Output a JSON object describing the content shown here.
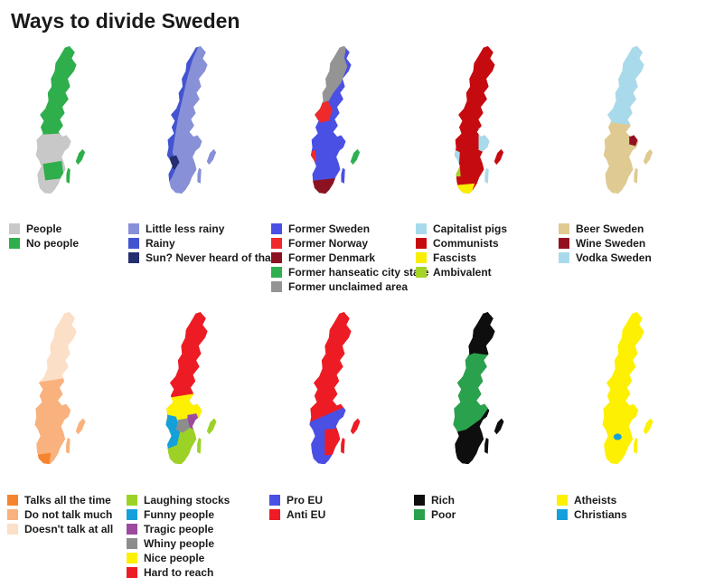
{
  "title": "Ways to divide Sweden",
  "maps": [
    {
      "id": "population",
      "legend": [
        {
          "label": "People",
          "color": "#c8c8c8"
        },
        {
          "label": "No people",
          "color": "#2fae4c"
        }
      ]
    },
    {
      "id": "rain",
      "legend": [
        {
          "label": "Little less rainy",
          "color": "#8890d8"
        },
        {
          "label": "Rainy",
          "color": "#4254d0"
        },
        {
          "label": "Sun? Never heard of that",
          "color": "#242e70"
        }
      ]
    },
    {
      "id": "former-countries",
      "legend": [
        {
          "label": "Former Sweden",
          "color": "#4a50e4"
        },
        {
          "label": "Former Norway",
          "color": "#ee2a2b"
        },
        {
          "label": "Former Denmark",
          "color": "#8c1221"
        },
        {
          "label": "Former hanseatic city state",
          "color": "#2eaf52"
        },
        {
          "label": "Former unclaimed area",
          "color": "#949494"
        }
      ]
    },
    {
      "id": "politics",
      "legend": [
        {
          "label": "Capitalist pigs",
          "color": "#a9daec"
        },
        {
          "label": "Communists",
          "color": "#c60b10"
        },
        {
          "label": "Fascists",
          "color": "#f9ee00"
        },
        {
          "label": "Ambivalent",
          "color": "#a5d327"
        }
      ]
    },
    {
      "id": "alcohol",
      "legend": [
        {
          "label": "Beer Sweden",
          "color": "#dfca92"
        },
        {
          "label": "Wine Sweden",
          "color": "#931021"
        },
        {
          "label": "Vodka Sweden",
          "color": "#a9daec"
        }
      ]
    },
    {
      "id": "talkativeness",
      "legend": [
        {
          "label": "Talks all the time",
          "color": "#f5842c"
        },
        {
          "label": "Do not talk much",
          "color": "#f9b17d"
        },
        {
          "label": "Doesn't talk at all",
          "color": "#fcdfc7"
        }
      ]
    },
    {
      "id": "people-types",
      "legend": [
        {
          "label": "Laughing stocks",
          "color": "#9cd226"
        },
        {
          "label": "Funny people",
          "color": "#14a0da"
        },
        {
          "label": "Tragic people",
          "color": "#9b4aa0"
        },
        {
          "label": "Whiny people",
          "color": "#8d8d8d"
        },
        {
          "label": "Nice people",
          "color": "#fdf000"
        },
        {
          "label": "Hard to reach",
          "color": "#ed1c24"
        }
      ]
    },
    {
      "id": "eu-stance",
      "legend": [
        {
          "label": "Pro EU",
          "color": "#4a50e4"
        },
        {
          "label": "Anti EU",
          "color": "#ed1c24"
        }
      ]
    },
    {
      "id": "wealth",
      "legend": [
        {
          "label": "Rich",
          "color": "#0e0e0e"
        },
        {
          "label": "Poor",
          "color": "#2aa24d"
        }
      ]
    },
    {
      "id": "religion",
      "legend": [
        {
          "label": "Atheists",
          "color": "#fdf000"
        },
        {
          "label": "Christians",
          "color": "#14a0da"
        }
      ]
    }
  ]
}
